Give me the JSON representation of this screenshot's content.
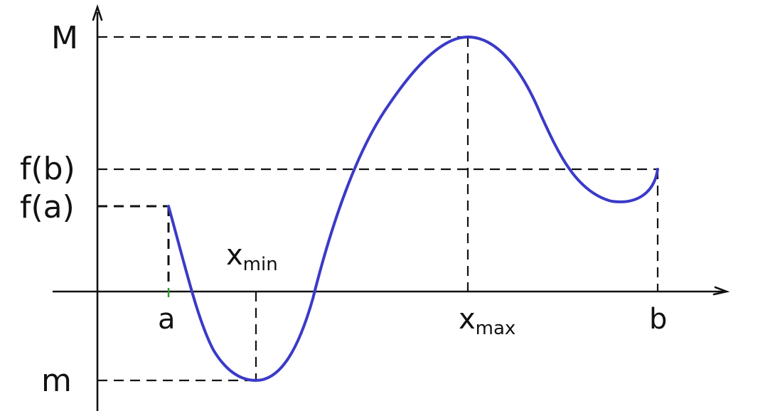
{
  "labels": {
    "y_max": "M",
    "y_fb": "f(b)",
    "y_fa": "f(a)",
    "y_min": "m",
    "x_a": "a",
    "x_min_base": "x",
    "x_min_sub": "min",
    "x_max_base": "x",
    "x_max_sub": "max",
    "x_b": "b"
  },
  "colors": {
    "curve": "#3a3ac8",
    "axes": "#111111",
    "guides": "#111111",
    "tick_a": "#2a9a2a"
  }
}
